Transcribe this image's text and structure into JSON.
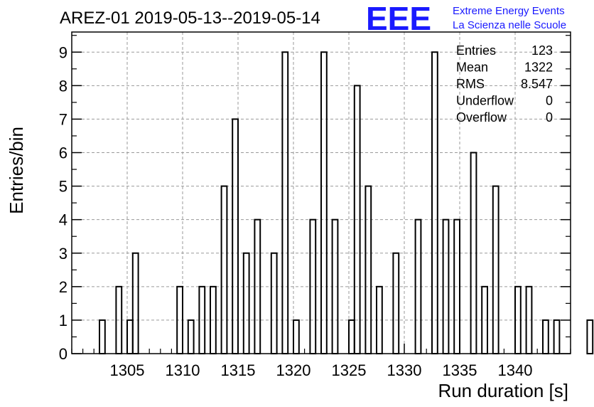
{
  "chart_data": {
    "type": "bar",
    "title": "AREZ-01 2019-05-13--2019-05-14",
    "xlabel": "Run duration [s]",
    "ylabel": "Entries/bin",
    "xlim": [
      1300,
      1345
    ],
    "ylim": [
      0,
      9.6
    ],
    "bin_width": 0.5,
    "grid": true,
    "xticks": [
      1305,
      1310,
      1315,
      1320,
      1325,
      1330,
      1335,
      1340
    ],
    "yticks": [
      0,
      1,
      2,
      3,
      4,
      5,
      6,
      7,
      8,
      9
    ],
    "bins": [
      {
        "x": 1302.5,
        "count": 1
      },
      {
        "x": 1304.0,
        "count": 2
      },
      {
        "x": 1305.0,
        "count": 1
      },
      {
        "x": 1305.5,
        "count": 3
      },
      {
        "x": 1309.5,
        "count": 2
      },
      {
        "x": 1310.5,
        "count": 1
      },
      {
        "x": 1311.5,
        "count": 2
      },
      {
        "x": 1312.5,
        "count": 2
      },
      {
        "x": 1313.5,
        "count": 5
      },
      {
        "x": 1314.5,
        "count": 7
      },
      {
        "x": 1315.5,
        "count": 3
      },
      {
        "x": 1316.5,
        "count": 4
      },
      {
        "x": 1318.0,
        "count": 3
      },
      {
        "x": 1319.0,
        "count": 9
      },
      {
        "x": 1320.0,
        "count": 1
      },
      {
        "x": 1321.5,
        "count": 4
      },
      {
        "x": 1322.5,
        "count": 9
      },
      {
        "x": 1323.5,
        "count": 4
      },
      {
        "x": 1325.0,
        "count": 1
      },
      {
        "x": 1325.5,
        "count": 8
      },
      {
        "x": 1326.5,
        "count": 5
      },
      {
        "x": 1327.5,
        "count": 2
      },
      {
        "x": 1329.0,
        "count": 3
      },
      {
        "x": 1331.0,
        "count": 4
      },
      {
        "x": 1332.5,
        "count": 9
      },
      {
        "x": 1333.5,
        "count": 4
      },
      {
        "x": 1334.5,
        "count": 4
      },
      {
        "x": 1336.0,
        "count": 6
      },
      {
        "x": 1337.0,
        "count": 2
      },
      {
        "x": 1338.0,
        "count": 5
      },
      {
        "x": 1340.0,
        "count": 2
      },
      {
        "x": 1341.0,
        "count": 2
      },
      {
        "x": 1342.5,
        "count": 1
      },
      {
        "x": 1343.5,
        "count": 1
      },
      {
        "x": 1346.5,
        "count": 1
      }
    ],
    "stats": [
      {
        "label": "Entries",
        "value": "123"
      },
      {
        "label": "Mean",
        "value": "1322"
      },
      {
        "label": "RMS",
        "value": "8.547"
      },
      {
        "label": "Underflow",
        "value": "0"
      },
      {
        "label": "Overflow",
        "value": "0"
      }
    ],
    "colors": {
      "bar_stroke": "#000000",
      "grid": "#9a9a9a",
      "logo": "#1a1aff"
    }
  },
  "logo": {
    "mark": "EEE",
    "line1": "Extreme Energy Events",
    "line2": "La Scienza nelle Scuole"
  }
}
